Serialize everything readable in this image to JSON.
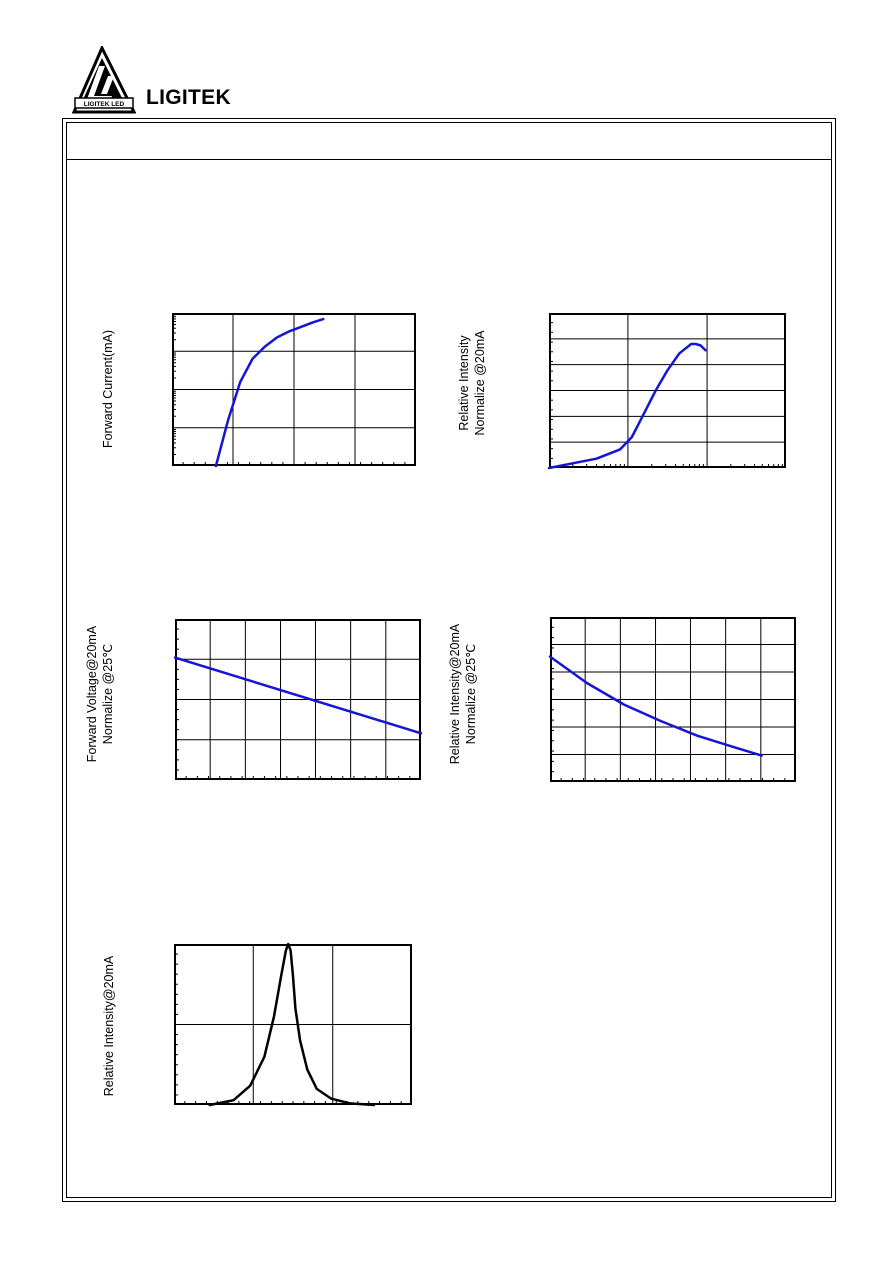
{
  "company": {
    "logo_text": "LIGITEK LED",
    "name": "LIGITEK"
  },
  "charts": {
    "forward_current": {
      "ylabel_lines": [
        "Forward Current(mA)"
      ]
    },
    "relative_intensity_current": {
      "ylabel_lines": [
        "Relative Intensity",
        "Normalize @20mA"
      ]
    },
    "forward_voltage_temp": {
      "ylabel_lines": [
        "Forward Voltage@20mA",
        "Normalize @25℃"
      ]
    },
    "relative_intensity_temp": {
      "ylabel_lines": [
        "Relative Intensity@20mA",
        "Normalize @25℃"
      ]
    },
    "spectrum": {
      "ylabel_lines": [
        "Relative Intensity@20mA"
      ]
    }
  },
  "colors": {
    "curve_blue": "#1515d6",
    "curve_black": "#000000"
  },
  "chart_data": [
    {
      "type": "line",
      "title": "",
      "xlabel": "",
      "ylabel": "Forward Current(mA)",
      "yscale": "log",
      "grid": true,
      "x": [
        0.0,
        0.05,
        0.1,
        0.15,
        0.2,
        0.25,
        0.3,
        0.35,
        0.4,
        0.44
      ],
      "series": [
        {
          "values": [
            0.0,
            0.3,
            0.55,
            0.7,
            0.78,
            0.84,
            0.88,
            0.91,
            0.94,
            0.96
          ]
        }
      ]
    },
    {
      "type": "line",
      "title": "",
      "xlabel": "",
      "ylabel": "Relative Intensity Normalize @20mA",
      "xscale": "log",
      "grid": true,
      "x": [
        0.0,
        0.1,
        0.2,
        0.3,
        0.35,
        0.4,
        0.45,
        0.5,
        0.55,
        0.6,
        0.62,
        0.64,
        0.66
      ],
      "series": [
        {
          "values": [
            0.0,
            0.03,
            0.06,
            0.12,
            0.2,
            0.35,
            0.5,
            0.63,
            0.74,
            0.8,
            0.8,
            0.79,
            0.76
          ]
        }
      ]
    },
    {
      "type": "line",
      "title": "",
      "xlabel": "",
      "ylabel": "Forward Voltage@20mA Normalize @25℃",
      "grid": true,
      "x": [
        0.0,
        1.0
      ],
      "series": [
        {
          "values": [
            0.76,
            0.29
          ]
        }
      ]
    },
    {
      "type": "line",
      "title": "",
      "xlabel": "",
      "ylabel": "Relative Intensity@20mA Normalize @25℃",
      "grid": true,
      "x": [
        0.0,
        0.15,
        0.3,
        0.45,
        0.6,
        0.75,
        0.86
      ],
      "series": [
        {
          "values": [
            0.76,
            0.6,
            0.47,
            0.37,
            0.28,
            0.21,
            0.16
          ]
        }
      ]
    },
    {
      "type": "line",
      "title": "",
      "xlabel": "",
      "ylabel": "Relative Intensity@20mA",
      "grid": true,
      "x": [
        0.15,
        0.25,
        0.32,
        0.38,
        0.42,
        0.45,
        0.47,
        0.48,
        0.49,
        0.5,
        0.51,
        0.53,
        0.56,
        0.6,
        0.66,
        0.74,
        0.84
      ],
      "series": [
        {
          "values": [
            0.0,
            0.03,
            0.12,
            0.3,
            0.55,
            0.8,
            0.96,
            1.0,
            0.96,
            0.8,
            0.6,
            0.4,
            0.22,
            0.1,
            0.04,
            0.01,
            0.0
          ]
        }
      ]
    }
  ]
}
